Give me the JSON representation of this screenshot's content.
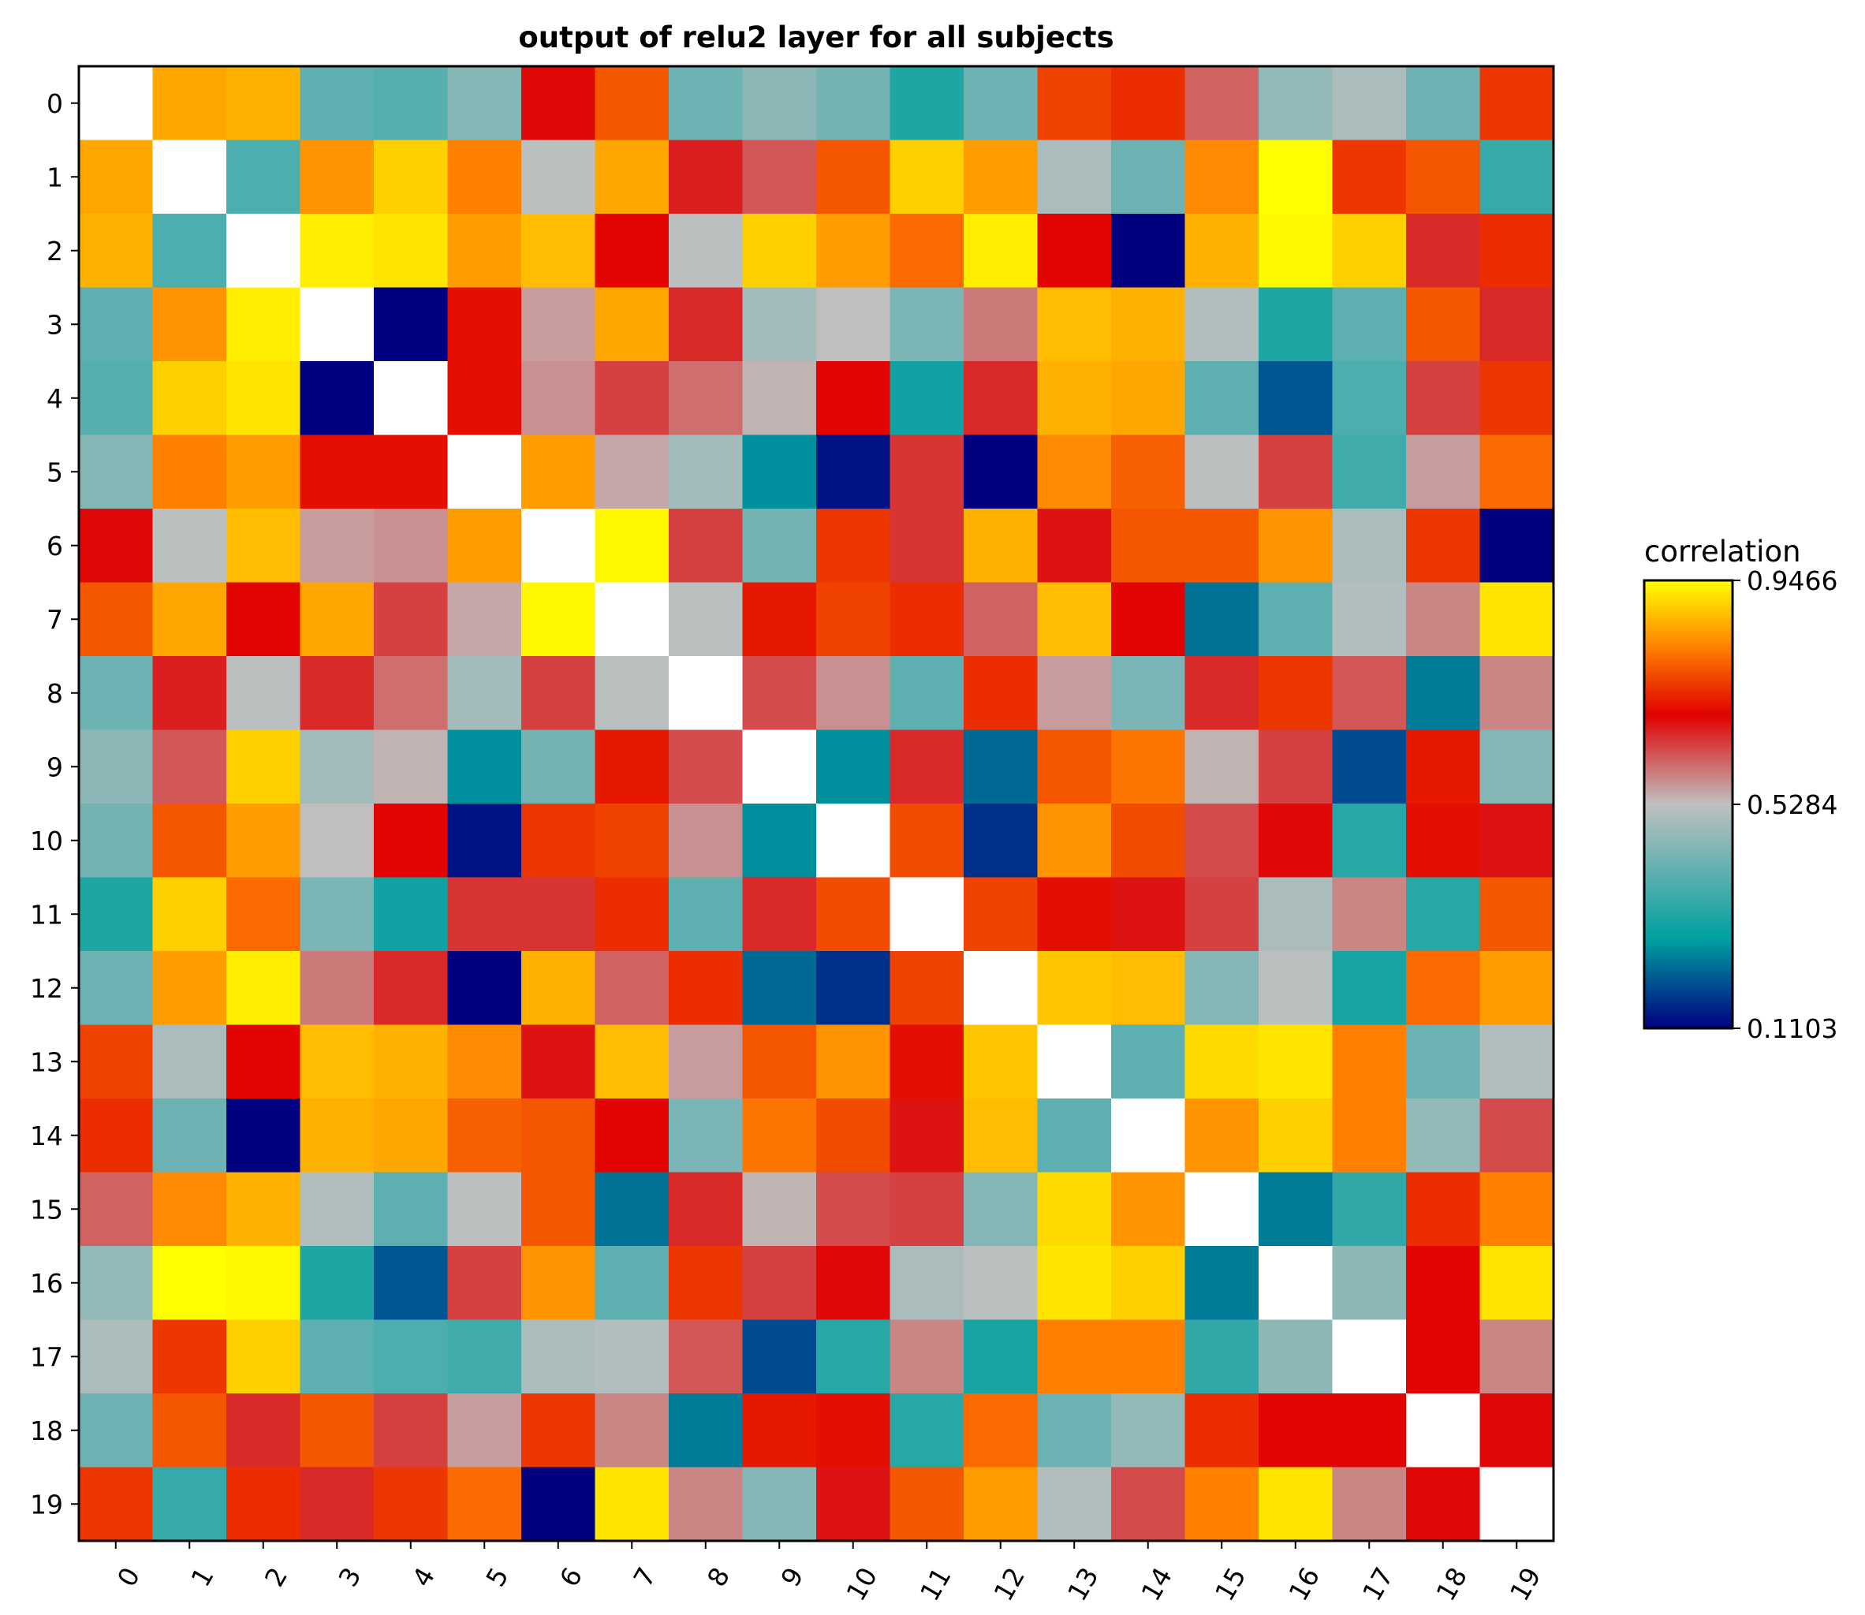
{
  "chart_data": {
    "type": "heatmap",
    "title": "output of relu2 layer for all subjects",
    "xlabel": "",
    "ylabel": "",
    "x_categories": [
      "0",
      "1",
      "2",
      "3",
      "4",
      "5",
      "6",
      "7",
      "8",
      "9",
      "10",
      "11",
      "12",
      "13",
      "14",
      "15",
      "16",
      "17",
      "18",
      "19"
    ],
    "y_categories": [
      "0",
      "1",
      "2",
      "3",
      "4",
      "5",
      "6",
      "7",
      "8",
      "9",
      "10",
      "11",
      "12",
      "13",
      "14",
      "15",
      "16",
      "17",
      "18",
      "19"
    ],
    "x_tick_rotation_deg": 60,
    "colorbar": {
      "label": "correlation",
      "min": 0.1103,
      "max": 0.9466,
      "ticks": [
        "0.1103",
        "0.5284",
        "0.9466"
      ],
      "colors": [
        "#000080",
        "#00a0a0",
        "#c0c0c0",
        "#e00000",
        "#ff8000",
        "#ffff00"
      ]
    },
    "diagonal": "white (self-correlation, not shown)",
    "matrix": [
      [
        null,
        0.86,
        0.87,
        0.4,
        0.39,
        0.45,
        0.69,
        0.78,
        0.42,
        0.46,
        0.43,
        0.32,
        0.42,
        0.76,
        0.74,
        0.61,
        0.47,
        0.5,
        0.42,
        0.75
      ],
      [
        0.86,
        null,
        0.38,
        0.84,
        0.9,
        0.82,
        0.52,
        0.86,
        0.67,
        0.62,
        0.78,
        0.9,
        0.85,
        0.5,
        0.42,
        0.83,
        0.95,
        0.75,
        0.78,
        0.35
      ],
      [
        0.87,
        0.38,
        null,
        0.93,
        0.92,
        0.85,
        0.88,
        0.7,
        0.52,
        0.9,
        0.85,
        0.8,
        0.93,
        0.7,
        0.11,
        0.87,
        0.94,
        0.9,
        0.66,
        0.74
      ],
      [
        0.4,
        0.84,
        0.93,
        null,
        0.11,
        0.71,
        0.56,
        0.86,
        0.66,
        0.49,
        0.53,
        0.44,
        0.59,
        0.88,
        0.87,
        0.51,
        0.32,
        0.4,
        0.78,
        0.66
      ],
      [
        0.39,
        0.9,
        0.92,
        0.11,
        null,
        0.71,
        0.57,
        0.64,
        0.6,
        0.54,
        0.7,
        0.3,
        0.66,
        0.87,
        0.86,
        0.4,
        0.2,
        0.38,
        0.64,
        0.75
      ],
      [
        0.45,
        0.82,
        0.85,
        0.71,
        0.71,
        null,
        0.85,
        0.55,
        0.49,
        0.26,
        0.13,
        0.65,
        0.11,
        0.83,
        0.79,
        0.52,
        0.64,
        0.36,
        0.56,
        0.8
      ],
      [
        0.69,
        0.52,
        0.88,
        0.56,
        0.57,
        0.85,
        null,
        0.94,
        0.64,
        0.43,
        0.75,
        0.65,
        0.87,
        0.68,
        0.78,
        0.78,
        0.84,
        0.5,
        0.75,
        0.11
      ],
      [
        0.78,
        0.86,
        0.7,
        0.86,
        0.64,
        0.55,
        0.94,
        null,
        0.52,
        0.72,
        0.76,
        0.74,
        0.61,
        0.88,
        0.7,
        0.23,
        0.4,
        0.51,
        0.58,
        0.92
      ],
      [
        0.42,
        0.67,
        0.52,
        0.66,
        0.6,
        0.49,
        0.64,
        0.52,
        null,
        0.63,
        0.57,
        0.4,
        0.74,
        0.56,
        0.44,
        0.66,
        0.75,
        0.62,
        0.24,
        0.58
      ],
      [
        0.46,
        0.62,
        0.9,
        0.49,
        0.54,
        0.26,
        0.43,
        0.72,
        0.63,
        null,
        0.26,
        0.66,
        0.22,
        0.78,
        0.81,
        0.54,
        0.64,
        0.19,
        0.72,
        0.45
      ],
      [
        0.43,
        0.78,
        0.85,
        0.53,
        0.7,
        0.13,
        0.75,
        0.76,
        0.57,
        0.26,
        null,
        0.77,
        0.16,
        0.84,
        0.77,
        0.63,
        0.69,
        0.33,
        0.71,
        0.68
      ],
      [
        0.32,
        0.9,
        0.8,
        0.44,
        0.3,
        0.65,
        0.65,
        0.74,
        0.4,
        0.66,
        0.77,
        null,
        0.76,
        0.71,
        0.68,
        0.64,
        0.5,
        0.58,
        0.33,
        0.78
      ],
      [
        0.42,
        0.85,
        0.93,
        0.59,
        0.66,
        0.11,
        0.87,
        0.61,
        0.74,
        0.22,
        0.16,
        0.76,
        null,
        0.89,
        0.88,
        0.45,
        0.52,
        0.31,
        0.8,
        0.85
      ],
      [
        0.76,
        0.5,
        0.7,
        0.88,
        0.87,
        0.83,
        0.68,
        0.88,
        0.56,
        0.78,
        0.84,
        0.71,
        0.89,
        null,
        0.4,
        0.91,
        0.92,
        0.82,
        0.42,
        0.51
      ],
      [
        0.74,
        0.42,
        0.11,
        0.87,
        0.86,
        0.79,
        0.78,
        0.7,
        0.44,
        0.81,
        0.77,
        0.68,
        0.88,
        0.4,
        null,
        0.84,
        0.9,
        0.82,
        0.47,
        0.63
      ],
      [
        0.61,
        0.83,
        0.87,
        0.51,
        0.4,
        0.52,
        0.78,
        0.23,
        0.66,
        0.54,
        0.63,
        0.64,
        0.45,
        0.91,
        0.84,
        null,
        0.24,
        0.34,
        0.74,
        0.82
      ],
      [
        0.47,
        0.95,
        0.94,
        0.32,
        0.2,
        0.64,
        0.84,
        0.4,
        0.75,
        0.64,
        0.69,
        0.5,
        0.52,
        0.92,
        0.9,
        0.24,
        null,
        0.46,
        0.7,
        0.92
      ],
      [
        0.5,
        0.75,
        0.9,
        0.4,
        0.38,
        0.36,
        0.5,
        0.51,
        0.62,
        0.19,
        0.33,
        0.58,
        0.31,
        0.82,
        0.82,
        0.34,
        0.46,
        null,
        0.7,
        0.58
      ],
      [
        0.42,
        0.78,
        0.66,
        0.78,
        0.64,
        0.56,
        0.75,
        0.58,
        0.24,
        0.72,
        0.71,
        0.33,
        0.8,
        0.42,
        0.47,
        0.74,
        0.7,
        0.7,
        null,
        0.69
      ],
      [
        0.75,
        0.35,
        0.74,
        0.66,
        0.75,
        0.8,
        0.11,
        0.92,
        0.58,
        0.45,
        0.68,
        0.78,
        0.85,
        0.51,
        0.63,
        0.82,
        0.92,
        0.58,
        0.69,
        null
      ]
    ]
  }
}
